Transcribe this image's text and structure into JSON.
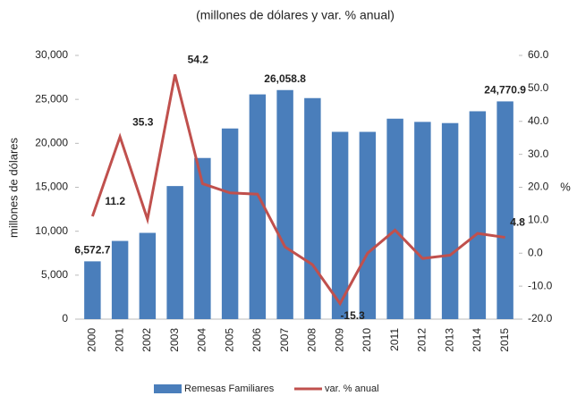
{
  "chart_data": {
    "type": "bar_line",
    "title": "(millones de dólares y var. % anual)",
    "ylabel": "millones de dólares",
    "y2label": "%",
    "categories": [
      "2000",
      "2001",
      "2002",
      "2003",
      "2004",
      "2005",
      "2006",
      "2007",
      "2008",
      "2009",
      "2010",
      "2011",
      "2012",
      "2013",
      "2014",
      "2015"
    ],
    "series": [
      {
        "name": "Remesas Familiares",
        "color": "#4a7ebb",
        "kind": "bar",
        "axis": "y",
        "values": [
          6572.7,
          8895,
          9814,
          15139,
          18332,
          21688,
          25567,
          26058.8,
          25145,
          21306,
          21304,
          22803,
          22438,
          22303,
          23647,
          24770.9
        ],
        "value_labels": [
          "6,572.7",
          null,
          null,
          null,
          null,
          null,
          null,
          "26,058.8",
          null,
          null,
          null,
          null,
          null,
          null,
          null,
          "24,770.9"
        ]
      },
      {
        "name": "var. % anual",
        "color": "#c0504d",
        "kind": "line",
        "axis": "y2",
        "values": [
          11.2,
          35.3,
          10.3,
          54.2,
          21.1,
          18.3,
          17.9,
          1.9,
          -3.5,
          -15.3,
          0.0,
          7.0,
          -1.6,
          -0.6,
          6.0,
          4.8
        ],
        "value_labels": [
          "11.2",
          "35.3",
          null,
          "54.2",
          null,
          null,
          null,
          null,
          null,
          "-15.3",
          null,
          null,
          null,
          null,
          null,
          "4.8"
        ]
      }
    ],
    "ylim": [
      0,
      30000
    ],
    "yticks": [
      0,
      {
        "value": 5000,
        "label": "5,000"
      },
      {
        "value": 10000,
        "label": "10,000"
      },
      {
        "value": 15000,
        "label": "15,000"
      },
      {
        "value": 20000,
        "label": "20,000"
      },
      {
        "value": 25000,
        "label": "25,000"
      },
      {
        "value": 30000,
        "label": "30,000"
      }
    ],
    "y2lim": [
      -20,
      60
    ],
    "y2ticks": [
      {
        "value": -20,
        "label": "-20.0"
      },
      {
        "value": -10,
        "label": "-10.0"
      },
      {
        "value": 0,
        "label": "0.0"
      },
      {
        "value": 10,
        "label": "10.0"
      },
      {
        "value": 20,
        "label": "20.0"
      },
      {
        "value": 30,
        "label": "30.0"
      },
      {
        "value": 40,
        "label": "40.0"
      },
      {
        "value": 50,
        "label": "50.0"
      },
      {
        "value": 60,
        "label": "60.0"
      }
    ],
    "legend": "bottom"
  }
}
